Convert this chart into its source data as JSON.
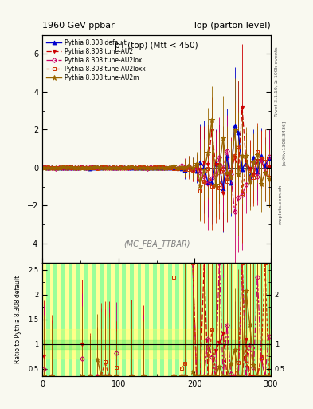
{
  "title_left": "1960 GeV ppbar",
  "title_right": "Top (parton level)",
  "plot_title": "pT (top) (Mtt < 450)",
  "watermark": "(MC_FBA_TTBAR)",
  "right_label": "Rivet 3.1.10, ≥ 100k events",
  "arxiv_label": "[arXiv:1306.3436]",
  "url_label": "mcplots.cern.ch",
  "ylabel_ratio": "Ratio to Pythia 8.308 default",
  "xlim": [
    0,
    300
  ],
  "ylim_main": [
    -5,
    7
  ],
  "ylim_ratio": [
    0.35,
    2.65
  ],
  "main_yticks": [
    -4,
    -2,
    0,
    2,
    4,
    6
  ],
  "bg_color": "#f9f9f0",
  "series": [
    {
      "label": "Pythia 8.308 default",
      "color": "#0000cc",
      "marker": "^",
      "markersize": 3.5,
      "linewidth": 1.0,
      "fillstyle": "full",
      "dashes": []
    },
    {
      "label": "Pythia 8.308 tune-AU2",
      "color": "#cc0000",
      "marker": "v",
      "markersize": 3,
      "linewidth": 0.9,
      "fillstyle": "full",
      "dashes": [
        5,
        2
      ]
    },
    {
      "label": "Pythia 8.308 tune-AU2lox",
      "color": "#cc0066",
      "marker": "D",
      "markersize": 3,
      "linewidth": 0.9,
      "fillstyle": "none",
      "dashes": [
        6,
        2,
        2,
        2
      ]
    },
    {
      "label": "Pythia 8.308 tune-AU2loxx",
      "color": "#cc3300",
      "marker": "s",
      "markersize": 3,
      "linewidth": 0.9,
      "fillstyle": "none",
      "dashes": [
        3,
        2
      ]
    },
    {
      "label": "Pythia 8.308 tune-AU2m",
      "color": "#996600",
      "marker": "*",
      "markersize": 4.5,
      "linewidth": 1.0,
      "fillstyle": "full",
      "dashes": []
    }
  ]
}
